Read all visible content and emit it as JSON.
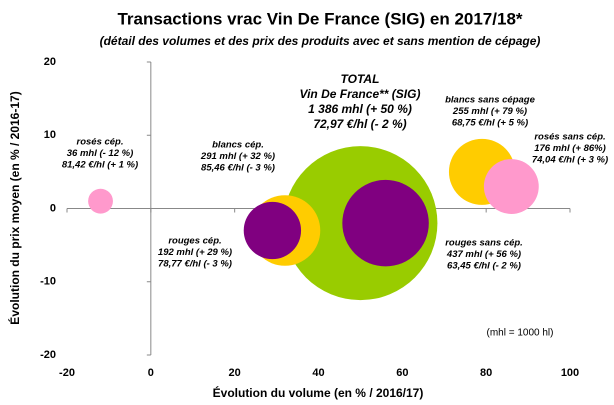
{
  "chart_data": {
    "type": "bubble",
    "title": "Transactions vrac Vin De France (SIG) en 2017/18*",
    "subtitle": "(détail des volumes et des prix des produits avec et sans mention de cépage)",
    "x_label": "Évolution du volume (en % / 2016/17)",
    "y_label": "Évolution du prix moyen (en % / 2016-17)",
    "note": "(mhl = 1000 hl)",
    "xlim": [
      -20,
      100
    ],
    "xticks": [
      -20,
      0,
      20,
      40,
      60,
      80,
      100
    ],
    "ylim": [
      -20,
      20
    ],
    "yticks": [
      -20,
      -10,
      0,
      10,
      20
    ],
    "points": [
      {
        "label": [
          "TOTAL",
          "Vin De France** (SIG)",
          "1 386 mhl (+ 50 %)",
          "72,97 €/hl (- 2 %)"
        ],
        "x": 50,
        "y": -2,
        "size": 1386,
        "color": "#99cc00"
      },
      {
        "label": [
          "blancs cép.",
          "291 mhl (+ 32 %)",
          "85,46 €/hl (- 3 %)"
        ],
        "x": 32,
        "y": -3,
        "size": 291,
        "color": "#ffcc00"
      },
      {
        "label": [
          "rouges cép.",
          "192 mhl (+ 29 %)",
          "78,77 €/hl (- 3 %)"
        ],
        "x": 29,
        "y": -3,
        "size": 192,
        "color": "#800080"
      },
      {
        "label": [
          "rouges sans cép.",
          "437 mhl (+ 56 %)",
          "63,45 €/hl (- 2 %)"
        ],
        "x": 56,
        "y": -2,
        "size": 437,
        "color": "#800080"
      },
      {
        "label": [
          "blancs sans cépage",
          "255 mhl (+ 79 %)",
          "68,75 €/hl (+ 5 %)"
        ],
        "x": 79,
        "y": 5,
        "size": 255,
        "color": "#ffcc00"
      },
      {
        "label": [
          "rosés sans cép.",
          "176 mhl (+ 86%)",
          "74,04 €/hl (+ 3 %)"
        ],
        "x": 86,
        "y": 3,
        "size": 176,
        "color": "#ff99cc"
      },
      {
        "label": [
          "rosés cép.",
          "36 mhl (- 12 %)",
          "81,42 €/hl (+ 1 %)"
        ],
        "x": -12,
        "y": 1,
        "size": 36,
        "color": "#ff99cc"
      }
    ]
  }
}
